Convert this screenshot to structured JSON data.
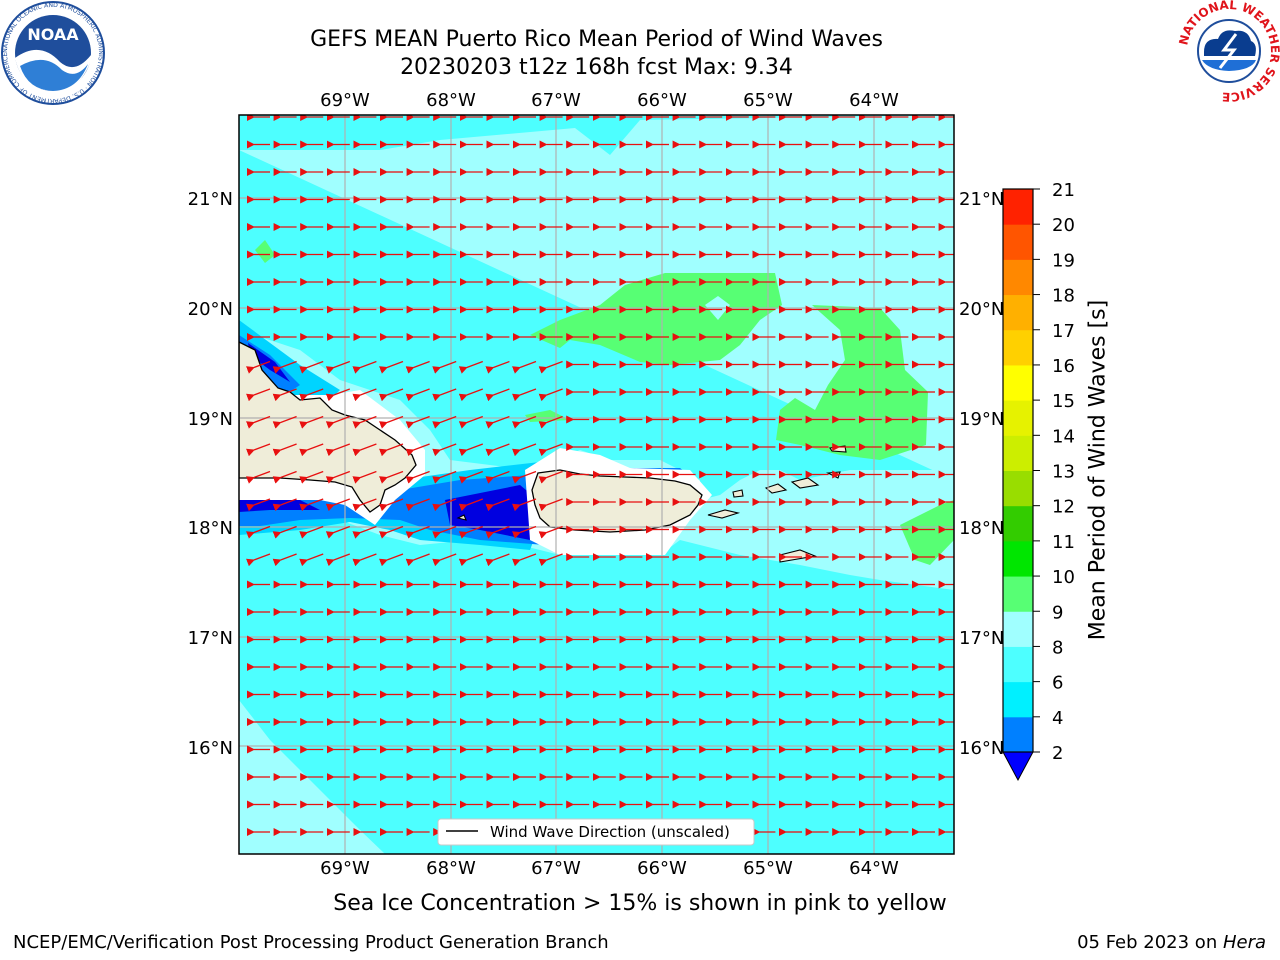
{
  "header": {
    "title_line1": "GEFS MEAN Puerto Rico Mean Period of Wind Waves",
    "title_line2": "20230203 t12z 168h fcst   Max: 9.34"
  },
  "logos": {
    "noaa": {
      "text": "NOAA",
      "ring_text": "NATIONAL OCEANIC AND ATMOSPHERIC ADMINISTRATION · U.S. DEPARTMENT OF COMMERCE",
      "color": "#1f4e9c"
    },
    "nws": {
      "ring_text": "NATIONAL WEATHER SERVICE",
      "color": "#e0141b"
    }
  },
  "map": {
    "lon_range": [
      -70.0,
      -63.25
    ],
    "lat_range": [
      15.0,
      21.75
    ],
    "lon_ticks": [
      {
        "value": -69,
        "label": "69°W"
      },
      {
        "value": -68,
        "label": "68°W"
      },
      {
        "value": -67,
        "label": "67°W"
      },
      {
        "value": -66,
        "label": "66°W"
      },
      {
        "value": -65,
        "label": "65°W"
      },
      {
        "value": -64,
        "label": "64°W"
      }
    ],
    "lat_ticks": [
      {
        "value": 16,
        "label": "16°N"
      },
      {
        "value": 17,
        "label": "17°N"
      },
      {
        "value": 18,
        "label": "18°N"
      },
      {
        "value": 19,
        "label": "19°N"
      },
      {
        "value": 20,
        "label": "20°N"
      },
      {
        "value": 21,
        "label": "21°N"
      }
    ],
    "ocean_colors": {
      "band_6_8": "#4dffff",
      "band_8_9": "#a0ffff",
      "band_9_10": "#57ff74",
      "band_4_6": "#00d4ff",
      "band_2_4": "#0080ff",
      "band_lt2": "#0000e0",
      "land": "#efedd9",
      "ice_free_coast": "#ffffff"
    },
    "arrow_color": "#e81010",
    "legend_label": "Wind Wave Direction (unscaled)"
  },
  "colorbar": {
    "label": "Mean Period of Wind Waves [s]",
    "ticks": [
      "2",
      "4",
      "6",
      "8",
      "9",
      "10",
      "11",
      "12",
      "13",
      "14",
      "15",
      "16",
      "17",
      "18",
      "19",
      "20",
      "21"
    ],
    "colors": [
      "#0080ff",
      "#00f0ff",
      "#4dffff",
      "#a0ffff",
      "#57ff74",
      "#00e600",
      "#33cc00",
      "#99dd00",
      "#ccee00",
      "#e6f200",
      "#ffff00",
      "#ffd000",
      "#ffb000",
      "#ff8800",
      "#ff5500",
      "#ff2200"
    ],
    "under_color": "#0000ff"
  },
  "caption": "Sea Ice Concentration > 15% is shown in pink to yellow",
  "footer": {
    "left": "NCEP/EMC/Verification Post Processing Product Generation Branch",
    "right_date": "05 Feb 2023 on ",
    "right_host": "Hera"
  }
}
